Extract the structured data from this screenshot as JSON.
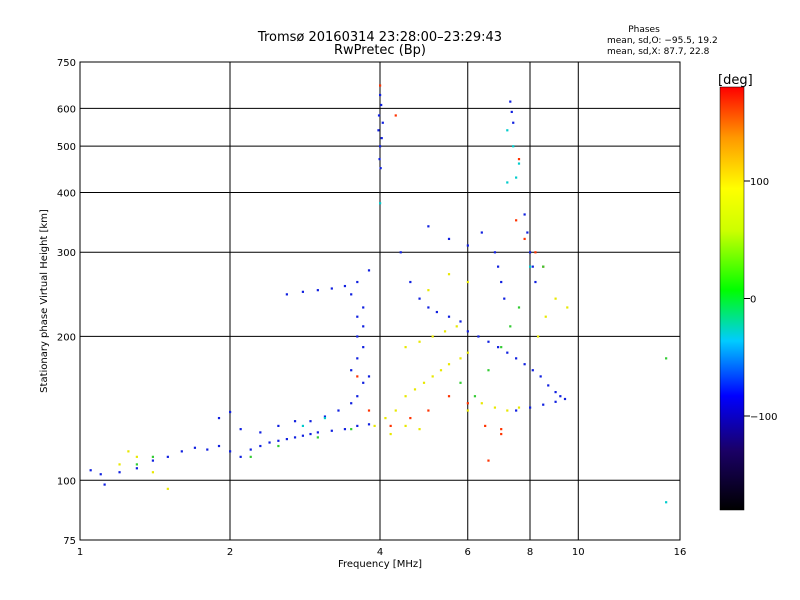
{
  "chart_data": {
    "type": "scatter",
    "title": "Tromsø 20160314 23:28:00–23:29:43",
    "subtitle": "RwPretec (Bp)",
    "stats": {
      "heading": "Phases",
      "line1": "mean, sd,O: −95.5, 19.2",
      "line2": "mean, sd,X:  87.7, 22.8"
    },
    "xlabel": "Frequency [MHz]",
    "ylabel": "Stationary phase Virtual Height [km]",
    "x_scale": "log",
    "y_scale": "log",
    "xlim": [
      1,
      16
    ],
    "ylim": [
      75,
      750
    ],
    "x_ticks": [
      1,
      2,
      4,
      6,
      8,
      10,
      16
    ],
    "x_tick_labels": [
      "1",
      "2",
      "4",
      "6",
      "8",
      "10",
      "16"
    ],
    "y_ticks": [
      75,
      100,
      200,
      300,
      400,
      500,
      600,
      750
    ],
    "y_tick_labels": [
      "75",
      "100",
      "200",
      "300",
      "400",
      "500",
      "600",
      "750"
    ],
    "grid": true,
    "colorbar": {
      "label": "[deg]",
      "min": -180,
      "max": 180,
      "ticks": [
        100,
        0,
        -100
      ],
      "tick_labels": [
        "100",
        "0",
        "−100"
      ]
    },
    "series": [
      {
        "phase": -100,
        "points": [
          [
            1.05,
            105
          ],
          [
            1.1,
            103
          ],
          [
            1.12,
            98
          ],
          [
            1.2,
            104
          ],
          [
            1.3,
            106
          ],
          [
            1.4,
            110
          ],
          [
            1.5,
            112
          ],
          [
            1.6,
            115
          ],
          [
            1.7,
            117
          ],
          [
            1.8,
            116
          ],
          [
            1.9,
            118
          ],
          [
            2.0,
            115
          ],
          [
            2.1,
            112
          ],
          [
            2.2,
            116
          ],
          [
            2.3,
            118
          ],
          [
            2.4,
            120
          ],
          [
            2.5,
            121
          ],
          [
            2.6,
            122
          ],
          [
            2.7,
            123
          ],
          [
            2.8,
            124
          ],
          [
            2.9,
            125
          ],
          [
            3.0,
            126
          ],
          [
            3.2,
            127
          ],
          [
            3.4,
            128
          ],
          [
            3.6,
            130
          ],
          [
            3.8,
            131
          ],
          [
            1.9,
            135
          ],
          [
            2.0,
            139
          ],
          [
            2.1,
            128
          ],
          [
            2.3,
            126
          ],
          [
            2.5,
            130
          ],
          [
            2.7,
            133
          ],
          [
            2.9,
            133
          ],
          [
            3.1,
            136
          ],
          [
            3.3,
            140
          ],
          [
            3.5,
            145
          ],
          [
            3.6,
            150
          ],
          [
            3.7,
            160
          ],
          [
            3.8,
            165
          ],
          [
            3.5,
            170
          ],
          [
            3.6,
            180
          ],
          [
            3.7,
            190
          ],
          [
            3.6,
            200
          ],
          [
            3.7,
            210
          ],
          [
            3.6,
            220
          ],
          [
            3.7,
            230
          ],
          [
            3.5,
            245
          ],
          [
            3.6,
            260
          ],
          [
            3.8,
            275
          ],
          [
            2.6,
            245
          ],
          [
            2.8,
            248
          ],
          [
            3.0,
            250
          ],
          [
            3.2,
            252
          ],
          [
            3.4,
            255
          ],
          [
            4.0,
            640
          ],
          [
            4.02,
            610
          ],
          [
            3.98,
            580
          ],
          [
            4.05,
            560
          ],
          [
            3.97,
            540
          ],
          [
            4.03,
            520
          ],
          [
            4.0,
            500
          ],
          [
            3.99,
            470
          ],
          [
            4.01,
            450
          ],
          [
            4.4,
            300
          ],
          [
            4.6,
            260
          ],
          [
            4.8,
            240
          ],
          [
            5.0,
            230
          ],
          [
            5.2,
            225
          ],
          [
            5.5,
            220
          ],
          [
            5.8,
            215
          ],
          [
            6.0,
            205
          ],
          [
            6.3,
            200
          ],
          [
            6.6,
            195
          ],
          [
            6.9,
            190
          ],
          [
            7.2,
            185
          ],
          [
            7.5,
            180
          ],
          [
            7.8,
            175
          ],
          [
            8.1,
            170
          ],
          [
            8.4,
            165
          ],
          [
            8.7,
            158
          ],
          [
            9.0,
            153
          ],
          [
            9.2,
            150
          ],
          [
            7.5,
            140
          ],
          [
            8.0,
            142
          ],
          [
            8.5,
            144
          ],
          [
            9.0,
            146
          ],
          [
            9.4,
            148
          ],
          [
            6.8,
            300
          ],
          [
            6.9,
            280
          ],
          [
            7.0,
            260
          ],
          [
            7.1,
            240
          ],
          [
            7.8,
            360
          ],
          [
            7.9,
            330
          ],
          [
            8.0,
            300
          ],
          [
            8.1,
            280
          ],
          [
            8.2,
            260
          ],
          [
            7.3,
            620
          ],
          [
            7.35,
            590
          ],
          [
            7.4,
            560
          ],
          [
            5.0,
            340
          ],
          [
            5.5,
            320
          ],
          [
            6.0,
            310
          ],
          [
            6.4,
            330
          ]
        ]
      },
      {
        "phase": 100,
        "points": [
          [
            1.2,
            108
          ],
          [
            1.3,
            112
          ],
          [
            1.25,
            115
          ],
          [
            1.4,
            104
          ],
          [
            1.5,
            96
          ],
          [
            3.9,
            130
          ],
          [
            4.1,
            135
          ],
          [
            4.3,
            140
          ],
          [
            4.5,
            150
          ],
          [
            4.7,
            155
          ],
          [
            4.9,
            160
          ],
          [
            5.1,
            165
          ],
          [
            5.3,
            170
          ],
          [
            5.5,
            175
          ],
          [
            5.8,
            180
          ],
          [
            6.0,
            185
          ],
          [
            4.5,
            190
          ],
          [
            4.8,
            195
          ],
          [
            5.1,
            200
          ],
          [
            5.4,
            205
          ],
          [
            5.7,
            210
          ],
          [
            6.0,
            140
          ],
          [
            6.4,
            145
          ],
          [
            6.8,
            142
          ],
          [
            7.2,
            140
          ],
          [
            7.6,
            142
          ],
          [
            8.3,
            200
          ],
          [
            8.6,
            220
          ],
          [
            9.0,
            240
          ],
          [
            9.5,
            230
          ],
          [
            5.0,
            250
          ],
          [
            5.5,
            270
          ],
          [
            6.0,
            260
          ],
          [
            4.2,
            125
          ],
          [
            4.5,
            130
          ],
          [
            4.8,
            128
          ]
        ]
      },
      {
        "phase": 150,
        "points": [
          [
            3.6,
            165
          ],
          [
            3.8,
            140
          ],
          [
            4.2,
            130
          ],
          [
            4.6,
            135
          ],
          [
            5.0,
            140
          ],
          [
            5.5,
            150
          ],
          [
            6.0,
            145
          ],
          [
            6.5,
            130
          ],
          [
            7.0,
            128
          ],
          [
            7.5,
            350
          ],
          [
            7.8,
            320
          ],
          [
            8.2,
            300
          ],
          [
            8.5,
            280
          ],
          [
            4.0,
            670
          ],
          [
            4.3,
            580
          ],
          [
            7.6,
            470
          ],
          [
            7.0,
            125
          ],
          [
            6.6,
            110
          ]
        ]
      },
      {
        "phase": 0,
        "points": [
          [
            1.3,
            108
          ],
          [
            1.4,
            112
          ],
          [
            2.2,
            112
          ],
          [
            2.5,
            118
          ],
          [
            3.0,
            123
          ],
          [
            3.5,
            128
          ],
          [
            5.8,
            160
          ],
          [
            6.2,
            150
          ],
          [
            6.6,
            170
          ],
          [
            7.0,
            190
          ],
          [
            7.3,
            210
          ],
          [
            7.6,
            230
          ],
          [
            8.5,
            280
          ],
          [
            15,
            180
          ]
        ]
      },
      {
        "phase": -30,
        "points": [
          [
            2.8,
            130
          ],
          [
            3.1,
            135
          ],
          [
            4.0,
            380
          ],
          [
            7.2,
            540
          ],
          [
            7.4,
            500
          ],
          [
            7.6,
            460
          ],
          [
            7.5,
            430
          ],
          [
            7.2,
            420
          ],
          [
            15,
            90
          ],
          [
            8.0,
            280
          ]
        ]
      }
    ]
  }
}
